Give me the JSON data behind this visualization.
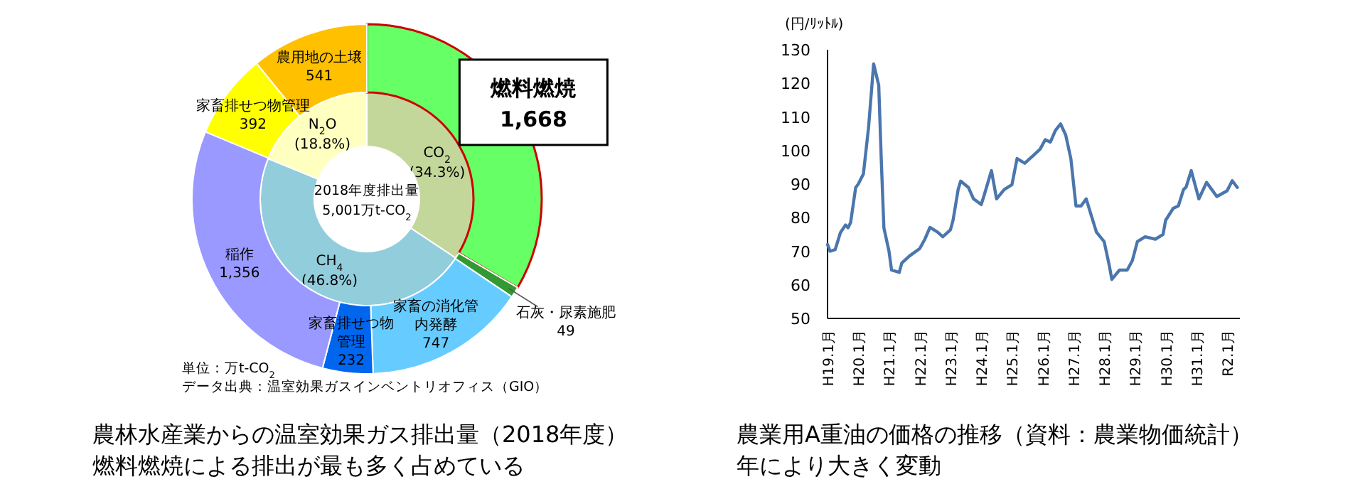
{
  "chart_data": [
    {
      "type": "donut",
      "title": "農林水産業からの温室効果ガス排出量（2018年度）",
      "subtitle": "燃料燃焼による排出が最も多く占めている",
      "categories": [
        "燃料燃焼",
        "石灰・尿素施肥",
        "家畜の消化管内発酵",
        "家畜排せつ物管理",
        "稲作",
        "家畜排せつ物管理",
        "農用地の土壌"
      ],
      "values": [
        1668,
        49,
        747,
        232,
        1356,
        392,
        541
      ],
      "colors": [
        "#66ff66",
        "#339933",
        "#66ccff",
        "#0066ee",
        "#9999ff",
        "#ffff00",
        "#ffc000"
      ],
      "value_labels": [
        "1,668",
        "49",
        "747",
        "232",
        "1,356",
        "392",
        "541"
      ],
      "annotations": [
        "単位：万t-CO$_{2}$",
        "データ出典：温室効果ガスインベントリオフィス（GIO）"
      ]
    },
    {
      "type": "donut",
      "categories": [
        "CO$_{2}$",
        "CH$_{4}$",
        "N$_{2}$O"
      ],
      "values": [
        34.3,
        46.8,
        18.8
      ],
      "colors": [
        "#c4d79b",
        "#92cddc",
        "#ffffc0"
      ],
      "value_labels": [
        "(34.3%)",
        "(46.8%)",
        "(18.8%)"
      ],
      "annotations": [
        "2018年度排出量",
        "5,001万t-CO$_{2}$"
      ]
    },
    {
      "type": "line",
      "title": "農業用A重油の価格の推移（資料：農業物価統計）",
      "subtitle": "年により大きく変動",
      "ylabel": "(円/ﾘｯﾄﾙ)",
      "color": "#4a76ad",
      "grid": false,
      "x": [
        "2007-01",
        "2007-02",
        "2007-04",
        "2007-06",
        "2007-08",
        "2007-09",
        "2007-10",
        "2007-12",
        "2008-01",
        "2008-03",
        "2008-05",
        "2008-07",
        "2008-09",
        "2008-10",
        "2008-11",
        "2009-01",
        "2009-02",
        "2009-05",
        "2009-06",
        "2009-09",
        "2010-01",
        "2010-03",
        "2010-05",
        "2010-08",
        "2010-10",
        "2011-01",
        "2011-02",
        "2011-04",
        "2011-05",
        "2011-08",
        "2011-10",
        "2012-01",
        "2012-02",
        "2012-05",
        "2012-06",
        "2012-07",
        "2012-10",
        "2013-01",
        "2013-03",
        "2013-06",
        "2013-09",
        "2013-12",
        "2014-02",
        "2014-04",
        "2014-06",
        "2014-08",
        "2014-10",
        "2014-12",
        "2015-02",
        "2015-04",
        "2015-06",
        "2015-08",
        "2015-10",
        "2016-01",
        "2016-03",
        "2016-04",
        "2016-07",
        "2016-10",
        "2016-12",
        "2017-02",
        "2017-05",
        "2017-09",
        "2017-12",
        "2018-01",
        "2018-04",
        "2018-06",
        "2018-08",
        "2018-09",
        "2018-11",
        "2019-02",
        "2019-05",
        "2019-09",
        "2020-01",
        "2020-03",
        "2020-05"
      ],
      "values": [
        72,
        70,
        70.5,
        75.5,
        77.8,
        77,
        78.5,
        89,
        90,
        93,
        106.7,
        125.8,
        119.4,
        96.9,
        77,
        70,
        64.4,
        63.7,
        66.5,
        68.6,
        70.8,
        73.6,
        77.1,
        75.7,
        74.3,
        76.4,
        79.2,
        88.4,
        90.9,
        89,
        85.6,
        83.9,
        86.3,
        94,
        89.8,
        85.6,
        88.4,
        89.8,
        97.6,
        96.2,
        98.3,
        100.4,
        103.2,
        102.5,
        106,
        107.9,
        104.6,
        97.6,
        83.5,
        83.5,
        85.6,
        80.6,
        75.7,
        72.9,
        65.8,
        61.6,
        64.4,
        64.4,
        67.2,
        72.9,
        74.3,
        73.6,
        75,
        79.2,
        82.8,
        83.5,
        88.4,
        89.1,
        94,
        85.6,
        90.5,
        86.3,
        88,
        91,
        89
      ],
      "xlim": [
        "2007-01",
        "2020-06"
      ],
      "xticks": [
        {
          "value": "2007-01",
          "label": "H19.1月"
        },
        {
          "value": "2008-01",
          "label": "H20.1月"
        },
        {
          "value": "2009-01",
          "label": "H21.1月"
        },
        {
          "value": "2010-01",
          "label": "H22.1月"
        },
        {
          "value": "2011-01",
          "label": "H23.1月"
        },
        {
          "value": "2012-01",
          "label": "H24.1月"
        },
        {
          "value": "2013-01",
          "label": "H25.1月"
        },
        {
          "value": "2014-01",
          "label": "H26.1月"
        },
        {
          "value": "2015-01",
          "label": "H27.1月"
        },
        {
          "value": "2016-01",
          "label": "H28.1月"
        },
        {
          "value": "2017-01",
          "label": "H29.1月"
        },
        {
          "value": "2018-01",
          "label": "H30.1月"
        },
        {
          "value": "2019-01",
          "label": "H31.1月"
        },
        {
          "value": "2020-01",
          "label": "R2.1月"
        }
      ],
      "ylim": [
        50,
        130
      ],
      "yticks": [
        50,
        60,
        70,
        80,
        90,
        100,
        110,
        120,
        130
      ]
    }
  ]
}
